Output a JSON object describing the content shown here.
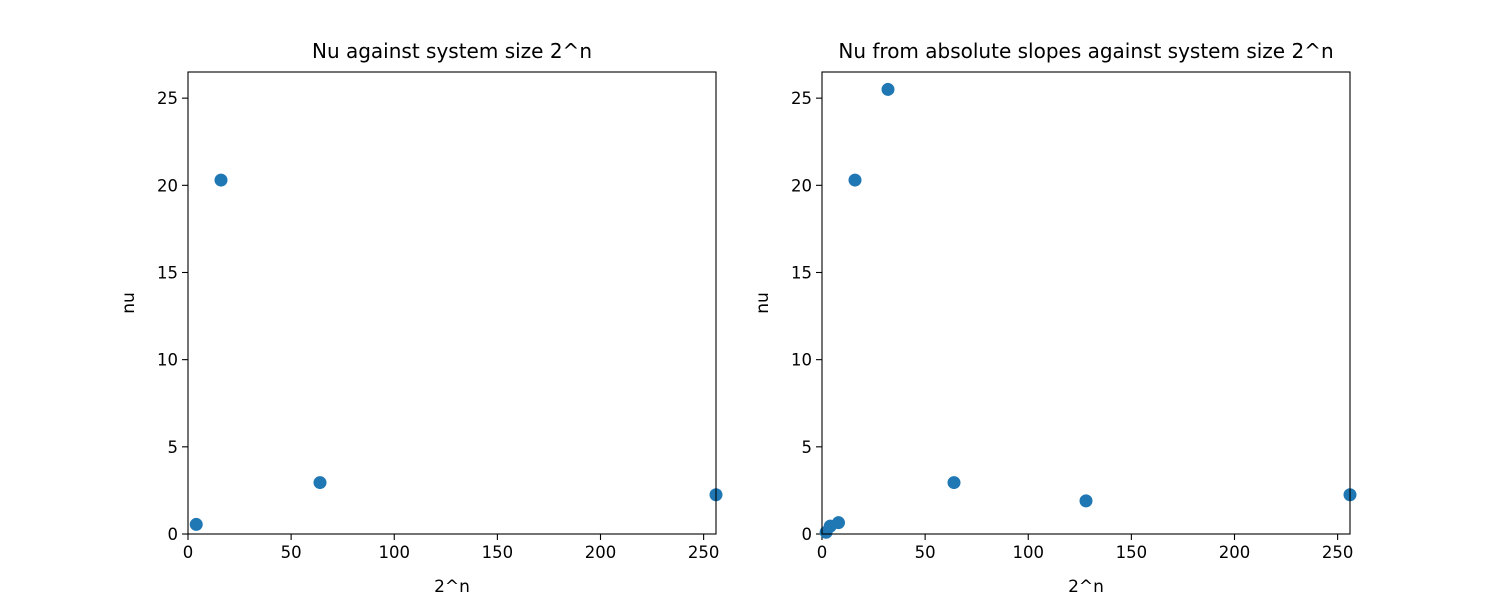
{
  "chart_data": [
    {
      "type": "scatter",
      "title": "Nu against system size 2^n",
      "xlabel": "2^n",
      "ylabel": "nu",
      "xlim": [
        0,
        256
      ],
      "ylim": [
        0,
        26.5
      ],
      "xticks": [
        0,
        50,
        100,
        150,
        200,
        250
      ],
      "yticks": [
        0,
        5,
        10,
        15,
        20,
        25
      ],
      "color": "#1f77b4",
      "x": [
        4,
        16,
        64,
        256
      ],
      "y": [
        0.55,
        20.3,
        2.95,
        2.25
      ]
    },
    {
      "type": "scatter",
      "title": "Nu from absolute slopes against system size 2^n",
      "xlabel": "2^n",
      "ylabel": "nu",
      "xlim": [
        0,
        256
      ],
      "ylim": [
        0,
        26.5
      ],
      "xticks": [
        0,
        50,
        100,
        150,
        200,
        250
      ],
      "yticks": [
        0,
        5,
        10,
        15,
        20,
        25
      ],
      "color": "#1f77b4",
      "x": [
        2,
        4,
        8,
        16,
        32,
        64,
        128,
        256
      ],
      "y": [
        0.1,
        0.45,
        0.65,
        20.3,
        25.5,
        2.95,
        1.9,
        2.25
      ]
    }
  ]
}
